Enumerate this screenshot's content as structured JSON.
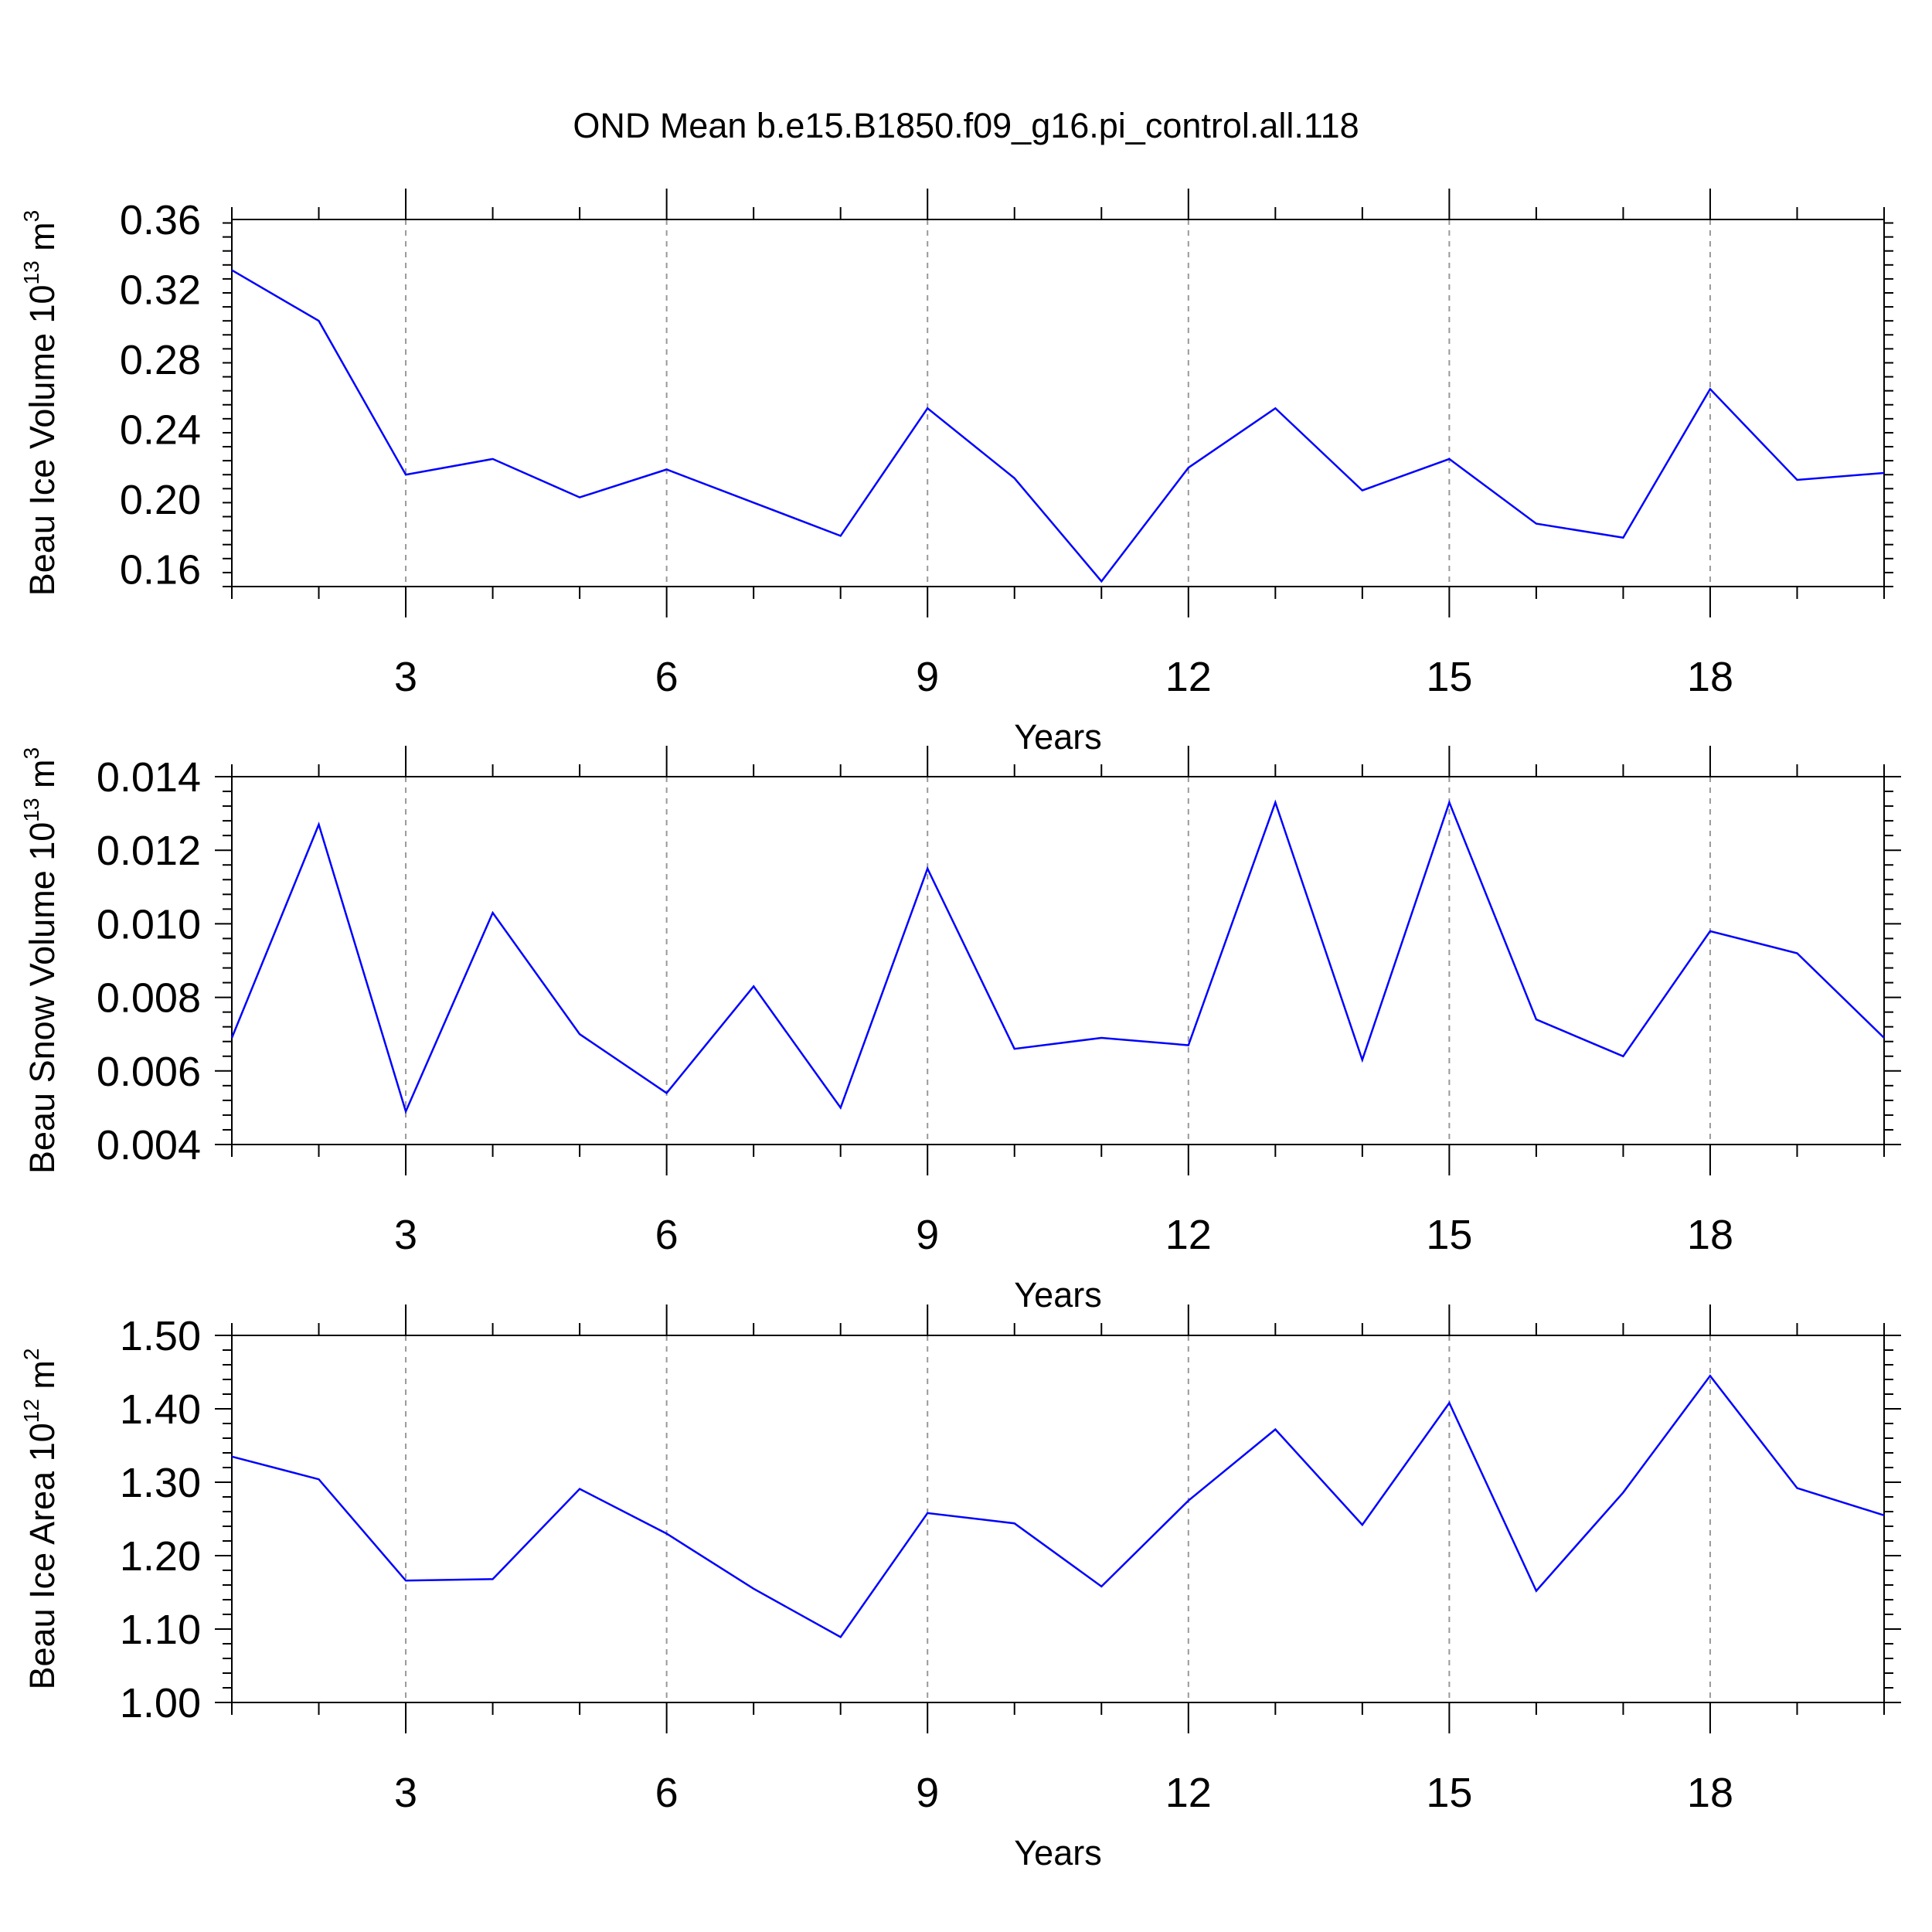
{
  "title": "OND Mean b.e15.B1850.f09_g16.pi_control.all.118",
  "line_color": "#0000ff",
  "chart_data": [
    {
      "type": "line",
      "xlabel": "Years",
      "ylabel": {
        "prefix": "Beau Ice Volume 10",
        "exp": "13",
        "unit": " m",
        "unit_exp": "3"
      },
      "xlim": [
        1,
        20
      ],
      "ylim": [
        0.15,
        0.36
      ],
      "yticks": [
        "0.16",
        "0.20",
        "0.24",
        "0.28",
        "0.32",
        "0.36"
      ],
      "xticks": [
        "3",
        "6",
        "9",
        "12",
        "15",
        "18"
      ],
      "grid_x": true,
      "x": [
        1,
        2,
        3,
        4,
        5,
        6,
        7,
        8,
        9,
        10,
        11,
        12,
        13,
        14,
        15,
        16,
        17,
        18,
        19,
        20
      ],
      "series": [
        {
          "values": [
            0.331,
            0.302,
            0.214,
            0.223,
            0.201,
            0.217,
            0.198,
            0.179,
            0.252,
            0.212,
            0.153,
            0.218,
            0.252,
            0.205,
            0.223,
            0.186,
            0.178,
            0.263,
            0.211,
            0.215
          ]
        }
      ]
    },
    {
      "type": "line",
      "xlabel": "Years",
      "ylabel": {
        "prefix": "Beau Snow Volume 10",
        "exp": "13",
        "unit": " m",
        "unit_exp": "3"
      },
      "xlim": [
        1,
        20
      ],
      "ylim": [
        0.004,
        0.014
      ],
      "yticks": [
        "0.004",
        "0.006",
        "0.008",
        "0.010",
        "0.012",
        "0.014"
      ],
      "xticks": [
        "3",
        "6",
        "9",
        "12",
        "15",
        "18"
      ],
      "grid_x": true,
      "x": [
        1,
        2,
        3,
        4,
        5,
        6,
        7,
        8,
        9,
        10,
        11,
        12,
        13,
        14,
        15,
        16,
        17,
        18,
        19,
        20
      ],
      "series": [
        {
          "values": [
            0.0069,
            0.0127,
            0.0049,
            0.0103,
            0.007,
            0.0054,
            0.0083,
            0.005,
            0.0115,
            0.0066,
            0.0069,
            0.0067,
            0.0133,
            0.0063,
            0.0133,
            0.0074,
            0.0064,
            0.0098,
            0.0092,
            0.0069
          ]
        }
      ]
    },
    {
      "type": "line",
      "xlabel": "Years",
      "ylabel": {
        "prefix": "Beau Ice Area 10",
        "exp": "12",
        "unit": " m",
        "unit_exp": "2"
      },
      "xlim": [
        1,
        20
      ],
      "ylim": [
        1.0,
        1.5
      ],
      "yticks": [
        "1.00",
        "1.10",
        "1.20",
        "1.30",
        "1.40",
        "1.50"
      ],
      "xticks": [
        "3",
        "6",
        "9",
        "12",
        "15",
        "18"
      ],
      "grid_x": true,
      "x": [
        1,
        2,
        3,
        4,
        5,
        6,
        7,
        8,
        9,
        10,
        11,
        12,
        13,
        14,
        15,
        16,
        17,
        18,
        19,
        20
      ],
      "series": [
        {
          "values": [
            1.335,
            1.304,
            1.166,
            1.168,
            1.291,
            1.23,
            1.155,
            1.089,
            1.258,
            1.244,
            1.158,
            1.275,
            1.372,
            1.242,
            1.408,
            1.152,
            1.286,
            1.445,
            1.292,
            1.255
          ]
        }
      ]
    }
  ]
}
